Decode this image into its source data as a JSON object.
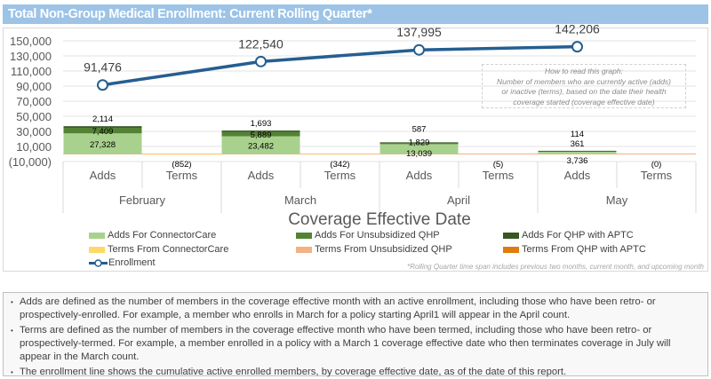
{
  "title": "Total Non-Group Medical Enrollment: Current Rolling Quarter*",
  "chart_data": {
    "type": "bar",
    "subtype": "stacked bar with line overlay",
    "xlabel": "Coverage Effective Date",
    "ylim": [
      -10000,
      150000
    ],
    "yticks": [
      "150,000",
      "130,000",
      "110,000",
      "90,000",
      "70,000",
      "50,000",
      "30,000",
      "10,000",
      "(10,000)"
    ],
    "grid": true,
    "legend_position": "bottom",
    "months": [
      "February",
      "March",
      "April",
      "May"
    ],
    "subcategories": [
      "Adds",
      "Terms"
    ],
    "series": [
      {
        "name": "Adds For ConnectorCare",
        "color": "#a9d18e",
        "values": [
          27328,
          23482,
          13039,
          3736
        ],
        "labels": [
          "27,328",
          "23,482",
          "13,039",
          "3,736"
        ]
      },
      {
        "name": "Adds For Unsubsidized QHP",
        "color": "#548235",
        "values": [
          7409,
          5889,
          1829,
          361
        ],
        "labels": [
          "7,409",
          "5,889",
          "1,829",
          "361"
        ]
      },
      {
        "name": "Adds For QHP with APTC",
        "color": "#375623",
        "values": [
          2114,
          1693,
          587,
          114
        ],
        "labels": [
          "2,114",
          "1,693",
          "587",
          "114"
        ]
      },
      {
        "name": "Terms From ConnectorCare",
        "color": "#ffd966",
        "values": [
          -852,
          -342,
          -5,
          0
        ],
        "labels": [
          "(852)",
          "(342)",
          "(5)",
          "(0)"
        ]
      },
      {
        "name": "Terms From Unsubsidized QHP",
        "color": "#f4b183",
        "values": [
          0,
          0,
          0,
          0
        ]
      },
      {
        "name": "Terms From QHP with APTC",
        "color": "#e07b10",
        "values": [
          0,
          0,
          0,
          0
        ]
      }
    ],
    "line": {
      "name": "Enrollment",
      "color": "#255e91",
      "values": [
        91476,
        122540,
        137995,
        142206
      ],
      "labels": [
        "91,476",
        "122,540",
        "137,995",
        "142,206"
      ]
    },
    "annotation": [
      "How to read this graph:",
      "Number of members who are currently active (adds)",
      "or inactive (terms), based on the date their health",
      "coverage started (coverage effective date)"
    ],
    "footnote": "*Rolling Quarter time span includes previous two months, current month, and upcoming month"
  },
  "notes": [
    "Adds are defined as the number of members in the coverage effective month with an active enrollment, including those who have been retro- or prospectively-enrolled.  For example, a member who enrolls in March for a policy starting April1 will appear in the April count.",
    "Terms are defined as the number of members in the coverage effective month who have been termed, including those who have been retro- or prospectively-termed.  For example, a member enrolled in a policy with a March 1 coverage effective date who then terminates coverage in July will appear in the March count.",
    "The enrollment line shows the cumulative active enrolled members, by coverage effective date, as of the date of this report."
  ]
}
